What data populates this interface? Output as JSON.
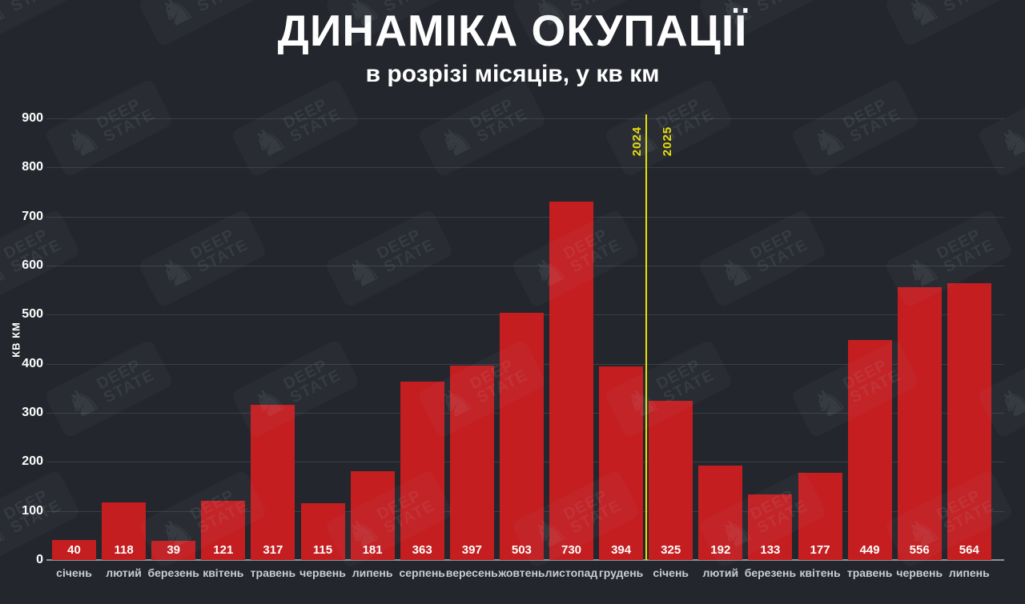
{
  "title": "ДИНАМІКА ОКУПАЦІЇ",
  "subtitle": "в розрізі місяців, у кв км",
  "watermark": {
    "line1": "DEEP",
    "line2": "STATE",
    "icon": "knight-chess-piece"
  },
  "colors": {
    "background": "#23262c",
    "bar": "#c41e20",
    "grid": "#3a3e46",
    "axis_line": "#8d929a",
    "tick_text": "#ffffff",
    "month_text": "#c9ced3",
    "divider": "#eae100",
    "title_text": "#ffffff"
  },
  "chart_data": {
    "type": "bar",
    "title": "ДИНАМІКА ОКУПАЦІЇ",
    "subtitle": "в розрізі місяців, у кв км",
    "ylabel": "КВ КМ",
    "xlabel": "",
    "ylim": [
      0,
      900
    ],
    "ytick_step": 100,
    "grid": true,
    "legend": false,
    "bar_color": "#c41e20",
    "categories": [
      "січень",
      "лютий",
      "березень",
      "квітень",
      "травень",
      "червень",
      "липень",
      "серпень",
      "вересень",
      "жовтень",
      "листопад",
      "грудень",
      "січень",
      "лютий",
      "березень",
      "квітень",
      "травень",
      "червень",
      "липень"
    ],
    "values": [
      40,
      118,
      39,
      121,
      317,
      115,
      181,
      363,
      397,
      503,
      730,
      394,
      325,
      192,
      133,
      177,
      449,
      556,
      564
    ],
    "divider": {
      "after_index": 11,
      "left_label": "2024",
      "right_label": "2025",
      "color": "#eae100"
    }
  }
}
